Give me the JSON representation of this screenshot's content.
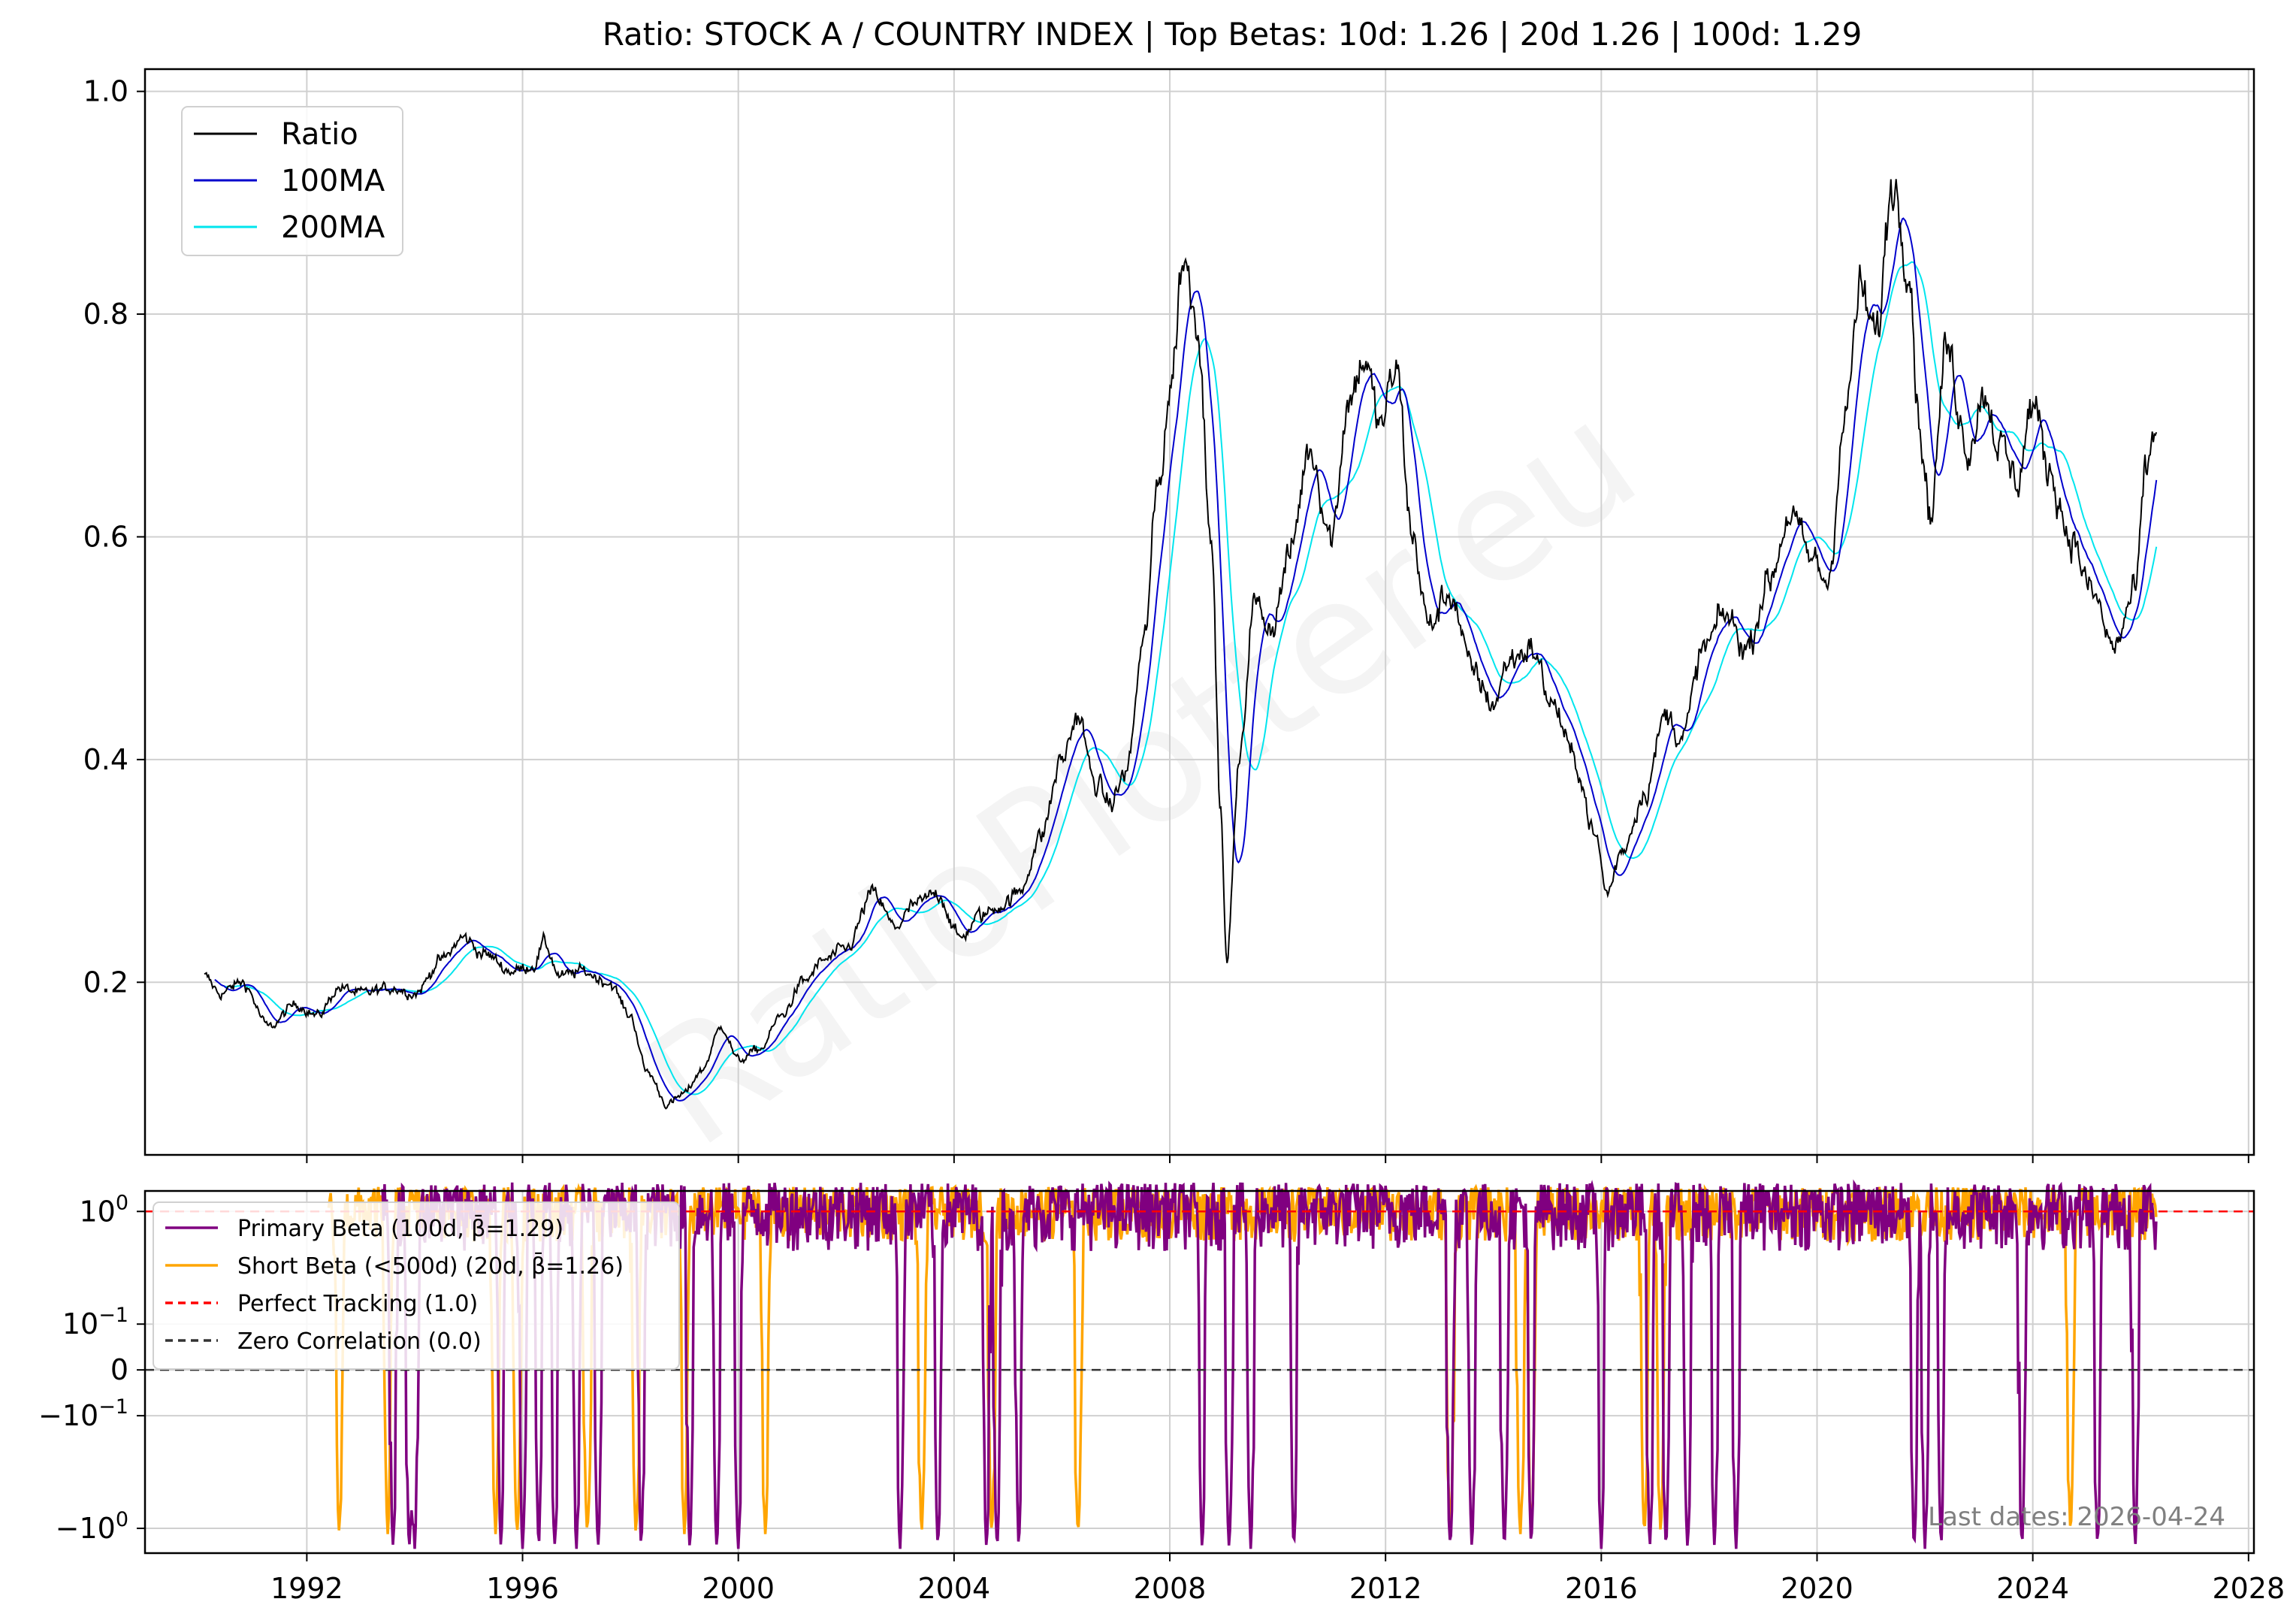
{
  "chart_data": [
    {
      "type": "line",
      "title": "Ratio: STOCK A / COUNTRY INDEX | Top Betas: 10d: 1.26 | 20d 1.26 | 100d: 1.29",
      "xlabel": "",
      "ylabel": "",
      "xlim": [
        1989.0,
        2028.1
      ],
      "ylim": [
        0.045,
        1.02
      ],
      "x_ticks": [
        "1992",
        "1996",
        "2000",
        "2004",
        "2008",
        "2012",
        "2016",
        "2020",
        "2024",
        "2028"
      ],
      "y_ticks": [
        "0.2",
        "0.4",
        "0.6",
        "0.8",
        "1.0"
      ],
      "grid": true,
      "legend_position": "upper-left",
      "series": [
        {
          "name": "Ratio",
          "color": "#000000"
        },
        {
          "name": "100MA",
          "color": "#0000cc"
        },
        {
          "name": "200MA",
          "color": "#00e5ee"
        }
      ],
      "anchors": [
        [
          1990.1,
          0.205
        ],
        [
          1990.4,
          0.19
        ],
        [
          1990.8,
          0.2
        ],
        [
          1991.3,
          0.16
        ],
        [
          1991.8,
          0.18
        ],
        [
          1992.2,
          0.17
        ],
        [
          1992.6,
          0.195
        ],
        [
          1993.0,
          0.19
        ],
        [
          1993.6,
          0.195
        ],
        [
          1994.0,
          0.19
        ],
        [
          1994.5,
          0.22
        ],
        [
          1994.9,
          0.24
        ],
        [
          1995.3,
          0.225
        ],
        [
          1995.8,
          0.21
        ],
        [
          1996.2,
          0.215
        ],
        [
          1996.4,
          0.235
        ],
        [
          1996.7,
          0.205
        ],
        [
          1997.1,
          0.21
        ],
        [
          1997.6,
          0.2
        ],
        [
          1998.0,
          0.17
        ],
        [
          1998.3,
          0.12
        ],
        [
          1998.7,
          0.09
        ],
        [
          1999.0,
          0.1
        ],
        [
          1999.3,
          0.12
        ],
        [
          1999.7,
          0.16
        ],
        [
          2000.0,
          0.13
        ],
        [
          2000.4,
          0.14
        ],
        [
          2000.8,
          0.17
        ],
        [
          2001.2,
          0.2
        ],
        [
          2001.6,
          0.22
        ],
        [
          2002.0,
          0.23
        ],
        [
          2002.5,
          0.28
        ],
        [
          2002.9,
          0.25
        ],
        [
          2003.3,
          0.27
        ],
        [
          2003.7,
          0.28
        ],
        [
          2004.1,
          0.24
        ],
        [
          2004.5,
          0.26
        ],
        [
          2004.9,
          0.27
        ],
        [
          2005.2,
          0.28
        ],
        [
          2005.6,
          0.33
        ],
        [
          2006.0,
          0.4
        ],
        [
          2006.3,
          0.44
        ],
        [
          2006.6,
          0.38
        ],
        [
          2006.9,
          0.36
        ],
        [
          2007.2,
          0.39
        ],
        [
          2007.5,
          0.5
        ],
        [
          2007.8,
          0.65
        ],
        [
          2008.0,
          0.73
        ],
        [
          2008.25,
          0.85
        ],
        [
          2008.5,
          0.8
        ],
        [
          2008.75,
          0.62
        ],
        [
          2008.95,
          0.35
        ],
        [
          2009.05,
          0.22
        ],
        [
          2009.3,
          0.4
        ],
        [
          2009.55,
          0.54
        ],
        [
          2009.9,
          0.52
        ],
        [
          2010.2,
          0.58
        ],
        [
          2010.6,
          0.68
        ],
        [
          2011.0,
          0.6
        ],
        [
          2011.3,
          0.72
        ],
        [
          2011.6,
          0.76
        ],
        [
          2011.9,
          0.7
        ],
        [
          2012.2,
          0.75
        ],
        [
          2012.5,
          0.6
        ],
        [
          2012.8,
          0.52
        ],
        [
          2013.2,
          0.55
        ],
        [
          2013.6,
          0.48
        ],
        [
          2014.0,
          0.45
        ],
        [
          2014.3,
          0.49
        ],
        [
          2014.7,
          0.5
        ],
        [
          2015.1,
          0.45
        ],
        [
          2015.5,
          0.4
        ],
        [
          2015.9,
          0.33
        ],
        [
          2016.1,
          0.28
        ],
        [
          2016.4,
          0.32
        ],
        [
          2016.8,
          0.37
        ],
        [
          2017.2,
          0.44
        ],
        [
          2017.5,
          0.42
        ],
        [
          2017.9,
          0.5
        ],
        [
          2018.3,
          0.53
        ],
        [
          2018.7,
          0.5
        ],
        [
          2019.1,
          0.56
        ],
        [
          2019.5,
          0.62
        ],
        [
          2019.9,
          0.58
        ],
        [
          2020.2,
          0.56
        ],
        [
          2020.5,
          0.7
        ],
        [
          2020.8,
          0.82
        ],
        [
          2021.1,
          0.78
        ],
        [
          2021.4,
          0.92
        ],
        [
          2021.7,
          0.85
        ],
        [
          2021.9,
          0.7
        ],
        [
          2022.1,
          0.62
        ],
        [
          2022.4,
          0.77
        ],
        [
          2022.8,
          0.68
        ],
        [
          2023.1,
          0.73
        ],
        [
          2023.4,
          0.68
        ],
        [
          2023.7,
          0.65
        ],
        [
          2024.0,
          0.72
        ],
        [
          2024.3,
          0.66
        ],
        [
          2024.7,
          0.6
        ],
        [
          2025.1,
          0.55
        ],
        [
          2025.5,
          0.5
        ],
        [
          2025.9,
          0.55
        ],
        [
          2026.1,
          0.66
        ],
        [
          2026.3,
          0.7
        ]
      ]
    },
    {
      "type": "line",
      "title": "",
      "xlabel": "",
      "ylabel": "",
      "y_scale": "symlog",
      "ylim": [
        -1.5,
        1.4
      ],
      "y_ticks": [
        {
          "base": "10",
          "exp": "0",
          "neg": false,
          "value": 1.0
        },
        {
          "base": "10",
          "exp": "−1",
          "neg": false,
          "value": 0.1
        },
        {
          "plain": "0",
          "value": 0.0
        },
        {
          "base": "10",
          "exp": "−1",
          "neg": true,
          "value": -0.1
        },
        {
          "base": "10",
          "exp": "0",
          "neg": true,
          "value": -1.0
        }
      ],
      "grid": true,
      "legend_position": "upper-left",
      "series": [
        {
          "name": "Primary Beta (100d, β̄=1.29)",
          "color": "#800080"
        },
        {
          "name": "Short Beta (<500d) (20d, β̄=1.26)",
          "color": "#ffa500"
        },
        {
          "name": "Perfect Tracking (1.0)",
          "color": "#ff0000"
        },
        {
          "name": "Zero Correlation (0.0)",
          "color": "#333333"
        }
      ],
      "reference_lines": [
        {
          "name": "Perfect Tracking (1.0)",
          "y": 1.0,
          "color": "#ff0000"
        },
        {
          "name": "Zero Correlation (0.0)",
          "y": 0.0,
          "color": "#333333"
        }
      ],
      "primary_dips": [
        1993.6,
        1993.9,
        1994.0,
        1995.6,
        1996.0,
        1996.3,
        1996.6,
        1997.0,
        1997.4,
        1998.2,
        1999.1,
        1999.6,
        2000.0,
        2003.0,
        2003.7,
        2004.6,
        2004.8,
        2005.2,
        2008.6,
        2009.1,
        2009.5,
        2010.3,
        2013.2,
        2013.6,
        2014.2,
        2014.7,
        2016.0,
        2016.9,
        2017.2,
        2017.6,
        2018.1,
        2018.5,
        2021.8,
        2022.0,
        2022.3,
        2023.8,
        2025.2,
        2025.9
      ],
      "short_dips": [
        1992.6,
        1993.5,
        1995.5,
        1995.9,
        1997.2,
        1998.1,
        1999.0,
        2000.5,
        2003.4,
        2004.7,
        2006.3,
        2013.2,
        2014.5,
        2014.7,
        2016.8,
        2017.1,
        2024.7
      ]
    }
  ],
  "footer": {
    "last_dates": "Last dates: 2026-04-24"
  },
  "watermark": {
    "text": "RatioPlotter.eu"
  }
}
